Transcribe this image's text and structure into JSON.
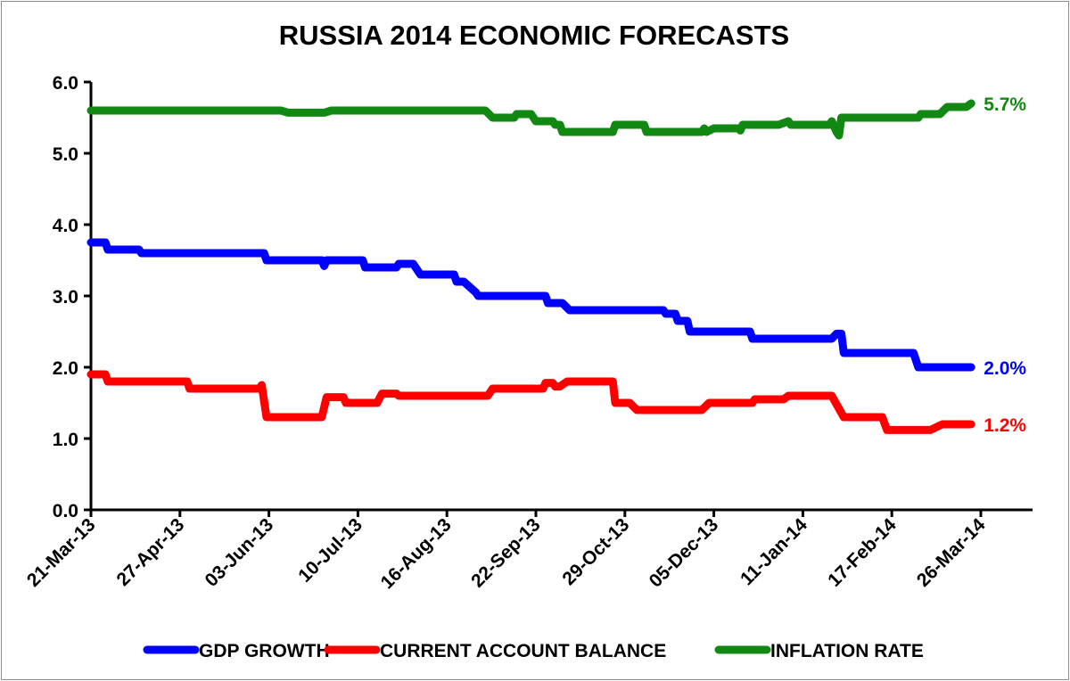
{
  "chart_data": {
    "type": "line",
    "title": "RUSSIA 2014 ECONOMIC FORECASTS",
    "xlabel": "",
    "ylabel": "",
    "xlim": [
      "2013-03-21",
      "2014-03-26"
    ],
    "ylim": [
      0,
      6
    ],
    "yticks": [
      "0.0",
      "1.0",
      "2.0",
      "3.0",
      "4.0",
      "5.0",
      "6.0"
    ],
    "xticks": [
      "21-Mar-13",
      "27-Apr-13",
      "03-Jun-13",
      "10-Jul-13",
      "16-Aug-13",
      "22-Sep-13",
      "29-Oct-13",
      "05-Dec-13",
      "11-Jan-14",
      "17-Feb-14",
      "26-Mar-14"
    ],
    "grid": false,
    "legend_position": "bottom",
    "series": [
      {
        "name": "GDP GROWTH",
        "color": "#0000ff",
        "end_label": "2.0%",
        "points": [
          [
            "2013-03-21",
            3.75
          ],
          [
            "2013-03-27",
            3.75
          ],
          [
            "2013-03-28",
            3.65
          ],
          [
            "2013-04-10",
            3.65
          ],
          [
            "2013-04-11",
            3.6
          ],
          [
            "2013-06-01",
            3.6
          ],
          [
            "2013-06-02",
            3.5
          ],
          [
            "2013-06-25",
            3.5
          ],
          [
            "2013-06-26",
            3.42
          ],
          [
            "2013-06-27",
            3.5
          ],
          [
            "2013-07-12",
            3.5
          ],
          [
            "2013-07-13",
            3.4
          ],
          [
            "2013-07-26",
            3.4
          ],
          [
            "2013-07-27",
            3.45
          ],
          [
            "2013-08-02",
            3.45
          ],
          [
            "2013-08-05",
            3.3
          ],
          [
            "2013-08-19",
            3.3
          ],
          [
            "2013-08-20",
            3.2
          ],
          [
            "2013-08-23",
            3.2
          ],
          [
            "2013-08-28",
            3.05
          ],
          [
            "2013-08-29",
            3.0
          ],
          [
            "2013-09-26",
            3.0
          ],
          [
            "2013-09-27",
            2.9
          ],
          [
            "2013-10-03",
            2.9
          ],
          [
            "2013-10-06",
            2.8
          ],
          [
            "2013-11-14",
            2.8
          ],
          [
            "2013-11-15",
            2.75
          ],
          [
            "2013-11-19",
            2.75
          ],
          [
            "2013-11-20",
            2.65
          ],
          [
            "2013-11-24",
            2.65
          ],
          [
            "2013-11-25",
            2.5
          ],
          [
            "2013-12-20",
            2.5
          ],
          [
            "2013-12-21",
            2.4
          ],
          [
            "2014-01-23",
            2.4
          ],
          [
            "2014-01-25",
            2.47
          ],
          [
            "2014-01-27",
            2.47
          ],
          [
            "2014-01-28",
            2.2
          ],
          [
            "2014-02-26",
            2.2
          ],
          [
            "2014-02-28",
            2.0
          ],
          [
            "2014-03-22",
            2.0
          ]
        ]
      },
      {
        "name": "CURRENT ACCOUNT BALANCE",
        "color": "#ff0000",
        "end_label": "1.2%",
        "points": [
          [
            "2013-03-21",
            1.9
          ],
          [
            "2013-03-27",
            1.9
          ],
          [
            "2013-03-28",
            1.8
          ],
          [
            "2013-04-30",
            1.8
          ],
          [
            "2013-05-01",
            1.7
          ],
          [
            "2013-05-30",
            1.7
          ],
          [
            "2013-05-31",
            1.75
          ],
          [
            "2013-06-02",
            1.3
          ],
          [
            "2013-06-25",
            1.3
          ],
          [
            "2013-06-27",
            1.58
          ],
          [
            "2013-07-04",
            1.58
          ],
          [
            "2013-07-05",
            1.5
          ],
          [
            "2013-07-18",
            1.5
          ],
          [
            "2013-07-20",
            1.63
          ],
          [
            "2013-07-26",
            1.63
          ],
          [
            "2013-07-27",
            1.6
          ],
          [
            "2013-09-02",
            1.6
          ],
          [
            "2013-09-04",
            1.7
          ],
          [
            "2013-09-25",
            1.7
          ],
          [
            "2013-09-26",
            1.78
          ],
          [
            "2013-09-29",
            1.78
          ],
          [
            "2013-09-30",
            1.73
          ],
          [
            "2013-10-02",
            1.73
          ],
          [
            "2013-10-05",
            1.8
          ],
          [
            "2013-10-24",
            1.8
          ],
          [
            "2013-10-25",
            1.5
          ],
          [
            "2013-10-31",
            1.5
          ],
          [
            "2013-11-03",
            1.4
          ],
          [
            "2013-11-30",
            1.4
          ],
          [
            "2013-12-03",
            1.5
          ],
          [
            "2013-12-21",
            1.5
          ],
          [
            "2013-12-22",
            1.55
          ],
          [
            "2014-01-03",
            1.55
          ],
          [
            "2014-01-05",
            1.6
          ],
          [
            "2014-01-23",
            1.6
          ],
          [
            "2014-01-28",
            1.3
          ],
          [
            "2014-02-13",
            1.3
          ],
          [
            "2014-02-15",
            1.12
          ],
          [
            "2014-03-05",
            1.12
          ],
          [
            "2014-03-10",
            1.2
          ],
          [
            "2014-03-22",
            1.2
          ]
        ]
      },
      {
        "name": "INFLATION RATE",
        "color": "#118811",
        "end_label": "5.7%",
        "points": [
          [
            "2013-03-21",
            5.6
          ],
          [
            "2013-06-08",
            5.6
          ],
          [
            "2013-06-11",
            5.57
          ],
          [
            "2013-06-26",
            5.57
          ],
          [
            "2013-06-29",
            5.6
          ],
          [
            "2013-09-01",
            5.6
          ],
          [
            "2013-09-04",
            5.5
          ],
          [
            "2013-09-13",
            5.5
          ],
          [
            "2013-09-14",
            5.55
          ],
          [
            "2013-09-20",
            5.55
          ],
          [
            "2013-09-22",
            5.45
          ],
          [
            "2013-09-29",
            5.45
          ],
          [
            "2013-09-30",
            5.4
          ],
          [
            "2013-10-02",
            5.4
          ],
          [
            "2013-10-03",
            5.3
          ],
          [
            "2013-10-24",
            5.3
          ],
          [
            "2013-10-25",
            5.4
          ],
          [
            "2013-11-06",
            5.4
          ],
          [
            "2013-11-07",
            5.3
          ],
          [
            "2013-11-30",
            5.3
          ],
          [
            "2013-12-01",
            5.35
          ],
          [
            "2013-12-02",
            5.3
          ],
          [
            "2013-12-05",
            5.35
          ],
          [
            "2013-12-15",
            5.35
          ],
          [
            "2013-12-16",
            5.32
          ],
          [
            "2013-12-17",
            5.4
          ],
          [
            "2014-01-01",
            5.4
          ],
          [
            "2014-01-05",
            5.45
          ],
          [
            "2014-01-06",
            5.4
          ],
          [
            "2014-01-22",
            5.4
          ],
          [
            "2014-01-23",
            5.45
          ],
          [
            "2014-01-25",
            5.3
          ],
          [
            "2014-01-26",
            5.25
          ],
          [
            "2014-01-27",
            5.5
          ],
          [
            "2014-02-28",
            5.5
          ],
          [
            "2014-03-01",
            5.55
          ],
          [
            "2014-03-09",
            5.55
          ],
          [
            "2014-03-12",
            5.65
          ],
          [
            "2014-03-20",
            5.65
          ],
          [
            "2014-03-22",
            5.7
          ]
        ]
      }
    ]
  }
}
